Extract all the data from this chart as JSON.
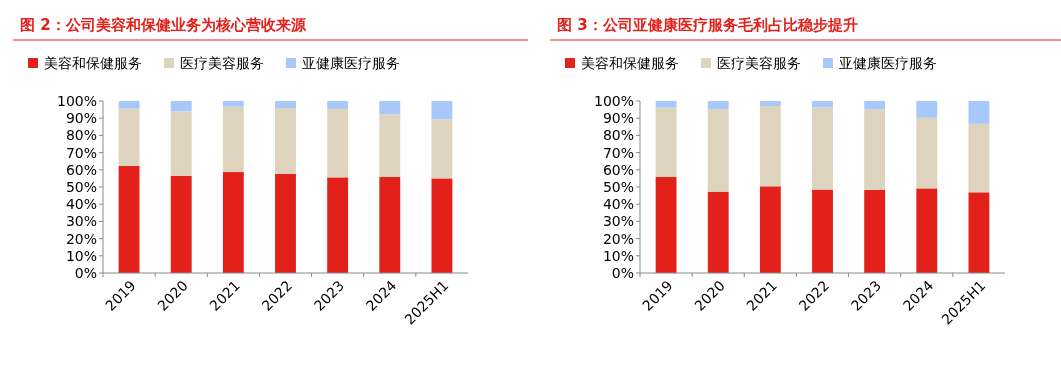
{
  "chart_data": [
    {
      "type": "bar",
      "title": "图 2：公司美容和保健业务为核心营收来源",
      "stacked": true,
      "legend": "top",
      "categories": [
        "2019",
        "2020",
        "2021",
        "2022",
        "2023",
        "2024",
        "2025H1"
      ],
      "series": [
        {
          "name": "美容和保健服务",
          "color": "#e3211b",
          "values": [
            62.2,
            56.4,
            58.7,
            57.7,
            55.6,
            55.8,
            55.0
          ]
        },
        {
          "name": "医疗美容服务",
          "color": "#ded3bc",
          "values": [
            33.4,
            37.6,
            38.0,
            38.2,
            39.8,
            36.5,
            34.4
          ]
        },
        {
          "name": "亚健康医疗服务",
          "color": "#a8c8fa",
          "values": [
            4.4,
            6.0,
            3.3,
            4.1,
            4.6,
            7.7,
            10.6
          ]
        }
      ],
      "ylim": [
        0,
        100
      ],
      "yticks": [
        {
          "value": 0,
          "label": "0%"
        },
        {
          "value": 10,
          "label": "10%"
        },
        {
          "value": 20,
          "label": "20%"
        },
        {
          "value": 30,
          "label": "30%"
        },
        {
          "value": 40,
          "label": "40%"
        },
        {
          "value": 50,
          "label": "50%"
        },
        {
          "value": 60,
          "label": "60%"
        },
        {
          "value": 70,
          "label": "70%"
        },
        {
          "value": 80,
          "label": "80%"
        },
        {
          "value": 90,
          "label": "90%"
        },
        {
          "value": 100,
          "label": "100%"
        }
      ]
    },
    {
      "type": "bar",
      "title": "图 3：公司亚健康医疗服务毛利占比稳步提升",
      "stacked": true,
      "legend": "top",
      "categories": [
        "2019",
        "2020",
        "2021",
        "2022",
        "2023",
        "2024",
        "2025H1"
      ],
      "series": [
        {
          "name": "美容和保健服务",
          "color": "#e3211b",
          "values": [
            55.8,
            47.3,
            50.4,
            48.5,
            48.3,
            49.2,
            46.9
          ]
        },
        {
          "name": "医疗美容服务",
          "color": "#ded3bc",
          "values": [
            40.3,
            47.9,
            46.7,
            47.8,
            46.9,
            41.1,
            39.8
          ]
        },
        {
          "name": "亚健康医疗服务",
          "color": "#a8c8fa",
          "values": [
            3.9,
            4.8,
            2.9,
            3.7,
            4.8,
            9.7,
            13.3
          ]
        }
      ],
      "ylim": [
        0,
        100
      ],
      "yticks": [
        {
          "value": 0,
          "label": "0%"
        },
        {
          "value": 10,
          "label": "10%"
        },
        {
          "value": 20,
          "label": "20%"
        },
        {
          "value": 30,
          "label": "30%"
        },
        {
          "value": 40,
          "label": "40%"
        },
        {
          "value": 50,
          "label": "50%"
        },
        {
          "value": 60,
          "label": "60%"
        },
        {
          "value": 70,
          "label": "70%"
        },
        {
          "value": 80,
          "label": "80%"
        },
        {
          "value": 90,
          "label": "90%"
        },
        {
          "value": 100,
          "label": "100%"
        }
      ]
    }
  ]
}
